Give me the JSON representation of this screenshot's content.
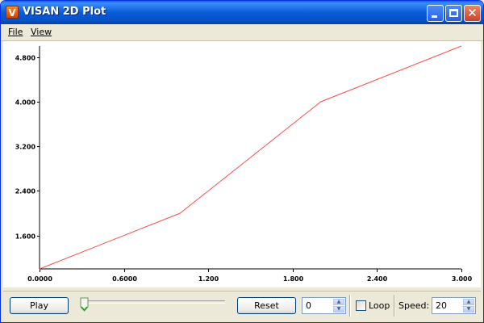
{
  "window": {
    "title": "VISAN 2D Plot",
    "app_icon": "visan-icon",
    "app_icon_glyph": "V",
    "close_glyph": "✕"
  },
  "menu": {
    "file": "File",
    "view": "View"
  },
  "colors": {
    "line": "#ff4d4d",
    "axis": "#000000"
  },
  "chart_data": {
    "type": "line",
    "series": [
      {
        "x": [
          0.0,
          1.0,
          2.0,
          3.0
        ],
        "y": [
          1.0,
          2.0,
          4.0,
          5.0
        ]
      }
    ],
    "xlim": [
      0.0,
      3.0
    ],
    "ylim": [
      1.0,
      5.0
    ],
    "x_ticks": [
      0.0,
      0.6,
      1.2,
      1.8,
      2.4,
      3.0
    ],
    "x_tick_labels": [
      "0.0000",
      "0.6000",
      "1.200",
      "1.800",
      "2.400",
      "3.000"
    ],
    "y_ticks": [
      1.6,
      2.4,
      3.2,
      4.0,
      4.8
    ],
    "y_tick_labels": [
      "1.600",
      "2.400",
      "3.200",
      "4.000",
      "4.800"
    ],
    "grid": false
  },
  "controls": {
    "play_label": "Play",
    "slider_value": 0,
    "reset_label": "Reset",
    "frame_value": "0",
    "loop_label": "Loop",
    "loop_checked": false,
    "speed_label": "Speed:",
    "speed_value": "20"
  }
}
